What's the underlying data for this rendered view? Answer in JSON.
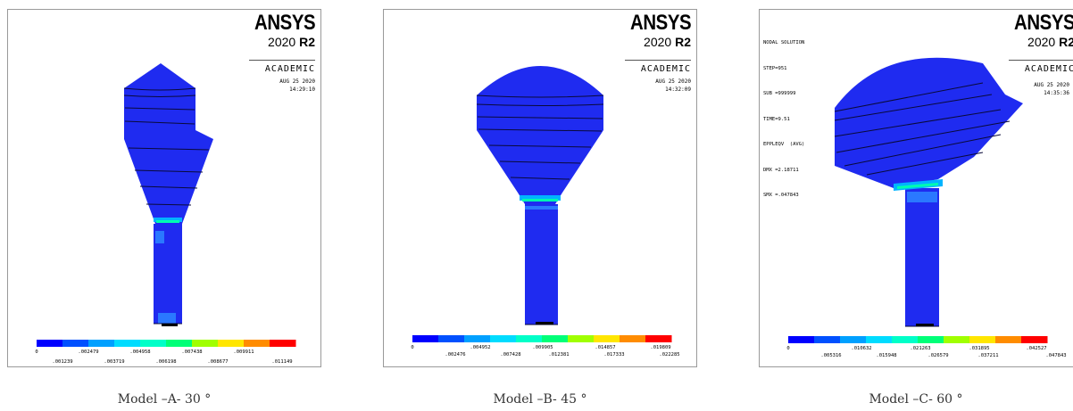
{
  "models": [
    {
      "logo": {
        "brand": "ANSYS",
        "version": "2020",
        "release": "R2"
      },
      "license": "ACADEMIC",
      "date": "AUG 25 2020",
      "time": "14:29:10",
      "legend_top": [
        "0",
        ".002479",
        ".004958",
        ".007438",
        ".009911"
      ],
      "legend_bottom": [
        ".001239",
        ".003719",
        ".006198",
        ".008677",
        ".011149"
      ],
      "caption": "Model –A- 30 °"
    },
    {
      "logo": {
        "brand": "ANSYS",
        "version": "2020",
        "release": "R2"
      },
      "license": "ACADEMIC",
      "date": "AUG 25 2020",
      "time": "14:32:09",
      "legend_top": [
        "0",
        ".004952",
        ".009905",
        ".014857",
        ".019809"
      ],
      "legend_bottom": [
        ".002476",
        ".007428",
        ".012381",
        ".017333",
        ".022285"
      ],
      "caption": "Model –B- 45 °"
    },
    {
      "logo": {
        "brand": "ANSYS",
        "version": "2020",
        "release": "R2"
      },
      "license": "ACADEMIC",
      "date": "AUG 25 2020",
      "time": "14:35:36",
      "info": [
        "NODAL SOLUTION",
        "STEP=951",
        "SUB =999999",
        "TIME=9.51",
        "EPPLEQV  (AVG)",
        "DMX =2.18711",
        "SMX =.047843"
      ],
      "legend_top": [
        "0",
        ".010632",
        ".021263",
        ".031895",
        ".042527"
      ],
      "legend_bottom": [
        ".005316",
        ".015948",
        ".026579",
        ".037211",
        ".047843"
      ],
      "caption": "Model –C- 60 °"
    }
  ],
  "colors": {
    "body_blue": "#1f2bf0",
    "mesh_line": "#0a0a3a",
    "legend": [
      "#0000ff",
      "#0050ff",
      "#00a0ff",
      "#00dcff",
      "#00ffc8",
      "#00ff78",
      "#a0ff00",
      "#ffe600",
      "#ff8c00",
      "#ff0000"
    ]
  }
}
